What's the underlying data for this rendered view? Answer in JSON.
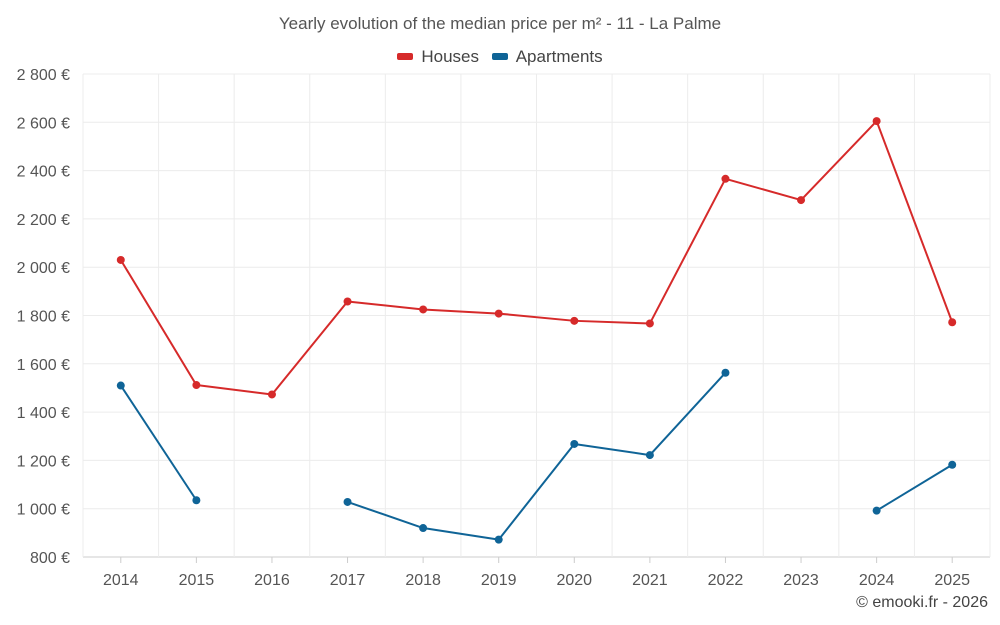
{
  "chart_data": {
    "type": "line",
    "title": "Yearly evolution of the median price per m² - 11 - La Palme",
    "categories": [
      "2014",
      "2015",
      "2016",
      "2017",
      "2018",
      "2019",
      "2020",
      "2021",
      "2022",
      "2023",
      "2024",
      "2025"
    ],
    "yticks": [
      "800 €",
      "1 000 €",
      "1 200 €",
      "1 400 €",
      "1 600 €",
      "1 800 €",
      "2 000 €",
      "2 200 €",
      "2 400 €",
      "2 600 €",
      "2 800 €"
    ],
    "ylim": [
      800,
      2800
    ],
    "ystep": 200,
    "xlabel": "",
    "ylabel": "",
    "legend_position": "top-center",
    "grid": true,
    "series": [
      {
        "name": "Houses",
        "color": "#d62a2a",
        "values": [
          2030,
          1512,
          1473,
          1858,
          1825,
          1808,
          1778,
          1767,
          2366,
          2278,
          2605,
          1772
        ]
      },
      {
        "name": "Apartments",
        "color": "#0f6497",
        "values": [
          1510,
          1035,
          null,
          1028,
          920,
          872,
          1268,
          1222,
          1563,
          null,
          992,
          1182
        ]
      }
    ]
  },
  "credit": "© emooki.fr - 2026"
}
